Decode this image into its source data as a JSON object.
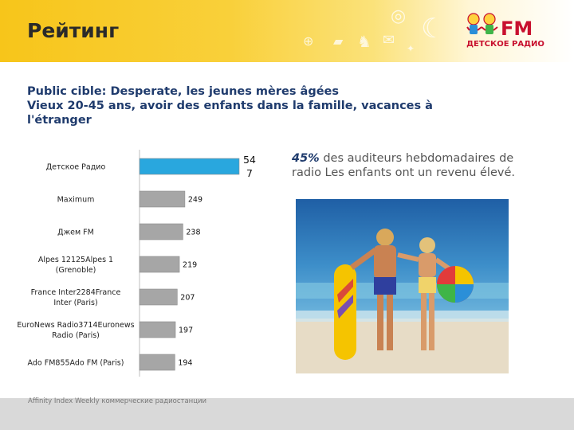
{
  "header": {
    "title": "Рейтинг"
  },
  "logo": {
    "name": "FM",
    "subtitle": "ДЕТСКОЕ РАДИО"
  },
  "subtitle": {
    "line1": "Public cible: Desperate, les jeunes mères âgées",
    "line2": "Vieux 20-45 ans, avoir des enfants dans la famille, vacances à l'étranger"
  },
  "description": {
    "highlight": "45%",
    "text": " des auditeurs hebdomadaires de radio Les enfants ont un revenu élevé."
  },
  "footer": {
    "text": "Affinity Index Weekly коммерческие радиостанции"
  },
  "colors": {
    "highlight_bar": "#29a7de",
    "bar": "#a6a6a6",
    "header": "#f7c51a"
  },
  "chart_data": {
    "type": "bar",
    "orientation": "horizontal",
    "categories": [
      "Детское Радио",
      "Maximum",
      "Джем FM",
      "Alpes 12125Alpes 1 (Grenoble)",
      "France Inter2284France Inter (Paris)",
      "EuroNews Radio3714Euronews Radio (Paris)",
      "Ado FM855Ado FM (Paris)"
    ],
    "values": [
      547,
      249,
      238,
      219,
      207,
      197,
      194
    ],
    "value_labels": [
      "54\n7",
      "249",
      "238",
      "219",
      "207",
      "197",
      "194"
    ],
    "highlight_index": 0,
    "title": "",
    "xlabel": "",
    "ylabel": "",
    "grid": false
  }
}
